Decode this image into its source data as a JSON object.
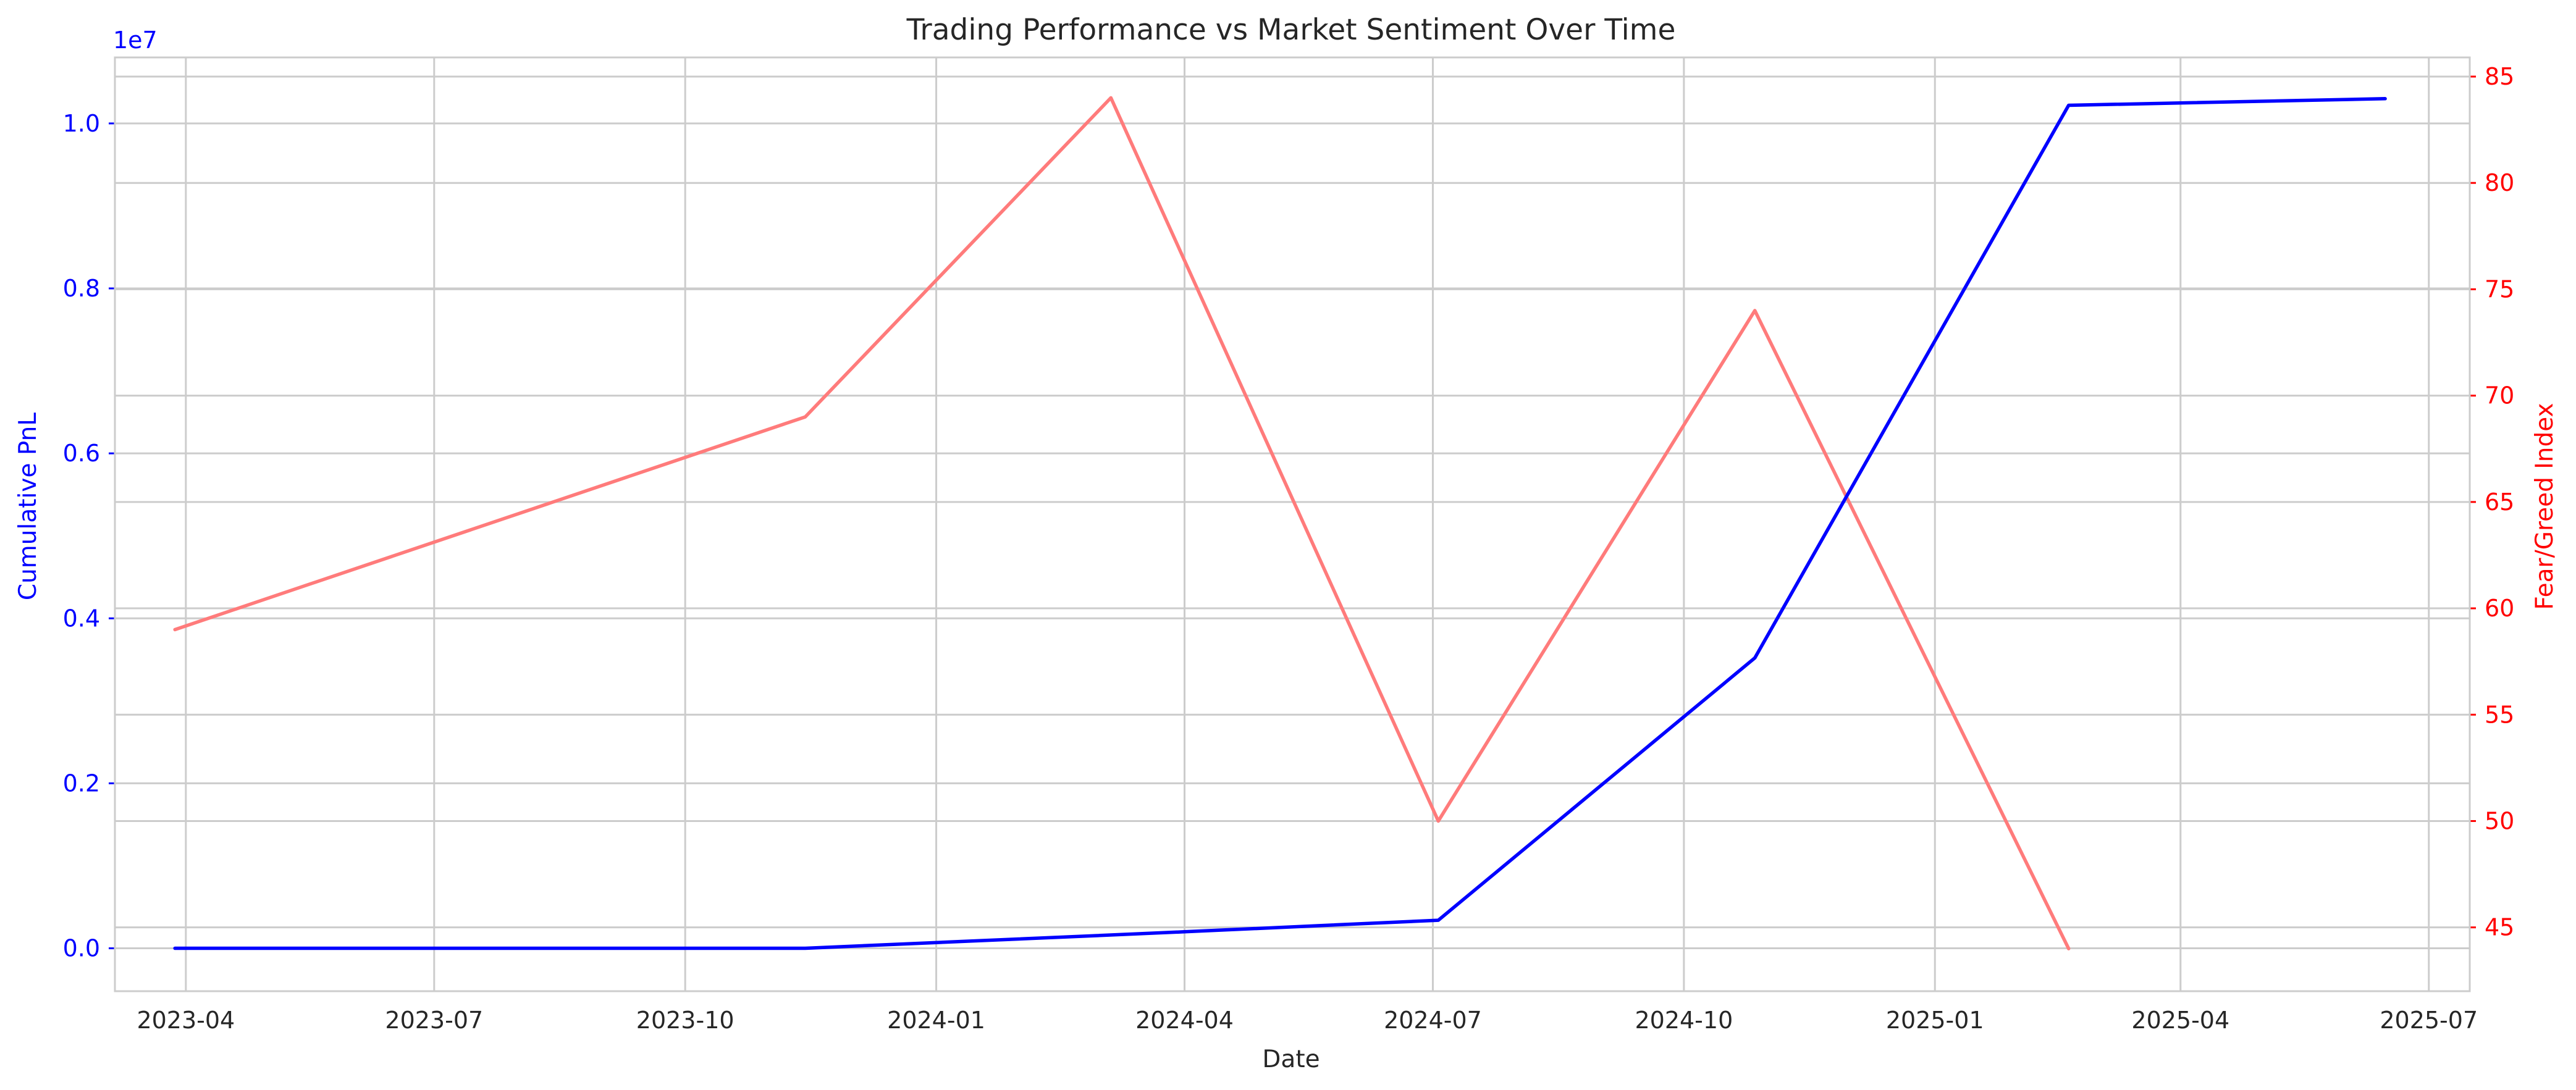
{
  "chart_data": {
    "type": "line",
    "title": "Trading Performance vs Market Sentiment Over Time",
    "xlabel": "Date",
    "ylabel_left": "Cumulative PnL",
    "ylabel_right": "Fear/Greed Index",
    "left_axis_multiplier": "1e7",
    "xlim": [
      "2023-03-06",
      "2025-07-16"
    ],
    "ylim_left": [
      -0.052,
      1.08
    ],
    "ylim_right": [
      42.0,
      85.9
    ],
    "x_ticks": [
      "2023-04",
      "2023-07",
      "2023-10",
      "2024-01",
      "2024-04",
      "2024-07",
      "2024-10",
      "2025-01",
      "2025-04",
      "2025-07"
    ],
    "y_ticks_left": [
      "0.0",
      "0.2",
      "0.4",
      "0.6",
      "0.8",
      "1.0"
    ],
    "y_ticks_right": [
      "45",
      "50",
      "55",
      "60",
      "65",
      "70",
      "75",
      "80",
      "85"
    ],
    "grid": true,
    "series": [
      {
        "name": "Cumulative PnL",
        "axis": "left",
        "color": "#0000ff",
        "x": [
          "2023-03-28",
          "2023-11-14",
          "2024-04-01",
          "2024-07-03",
          "2024-10-27",
          "2025-02-19",
          "2025-06-15"
        ],
        "y": [
          0.0,
          0.0,
          0.02,
          0.034,
          0.352,
          1.022,
          1.03
        ]
      },
      {
        "name": "Fear/Greed Index",
        "axis": "right",
        "color": "#ff7b7b",
        "x": [
          "2023-03-28",
          "2023-11-14",
          "2024-03-05",
          "2024-07-03",
          "2024-10-27",
          "2025-02-19"
        ],
        "y": [
          59,
          69,
          84,
          50,
          74,
          44
        ]
      }
    ],
    "colors": {
      "left_axis": "#0000ff",
      "right_axis": "#ff0000",
      "grid": "#cccccc",
      "text": "#262626"
    }
  }
}
